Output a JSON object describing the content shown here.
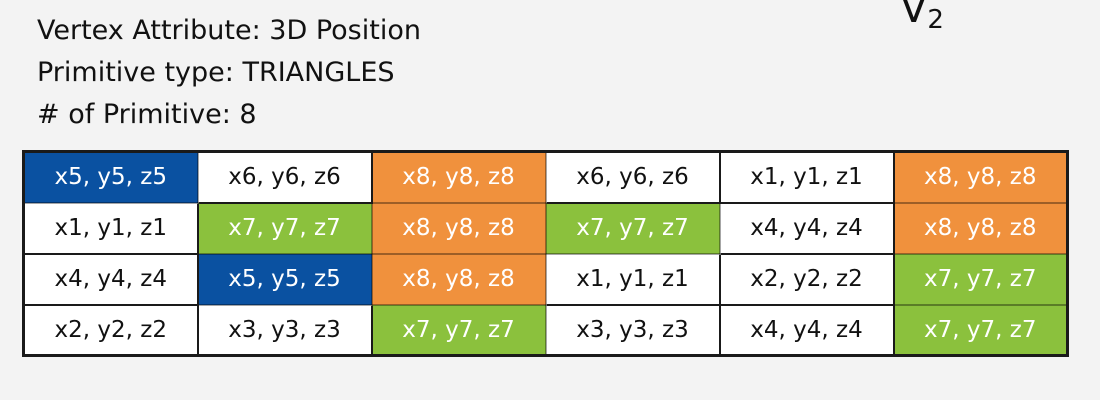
{
  "corner_label": {
    "main": "V",
    "sub": "2"
  },
  "header": {
    "lines": [
      "Vertex Attribute: 3D Position",
      "Primitive type: TRIANGLES",
      "# of Primitive: 8"
    ]
  },
  "table": {
    "rows": [
      [
        "x5, y5, z5",
        "x6, y6, z6",
        "x8, y8, z8",
        "x6, y6, z6",
        "x1, y1, z1",
        "x8, y8, z8"
      ],
      [
        "x1, y1, z1",
        "x7, y7, z7",
        "x8, y8, z8",
        "x7, y7, z7",
        "x4, y4, z4",
        "x8, y8, z8"
      ],
      [
        "x4, y4, z4",
        "x5, y5, z5",
        "x8, y8, z8",
        "x1, y1, z1",
        "x2, y2, z2",
        "x7, y7, z7"
      ],
      [
        "x2, y2, z2",
        "x3, y3, z3",
        "x7, y7, z7",
        "x3, y3, z3",
        "x4, y4, z4",
        "x7, y7, z7"
      ]
    ],
    "colors": [
      [
        "#0a51a1",
        "#ffffff",
        "#f0913d",
        "#ffffff",
        "#ffffff",
        "#f0913d"
      ],
      [
        "#ffffff",
        "#8bc13d",
        "#f0913d",
        "#8bc13d",
        "#ffffff",
        "#f0913d"
      ],
      [
        "#ffffff",
        "#0a51a1",
        "#f0913d",
        "#ffffff",
        "#ffffff",
        "#8bc13d"
      ],
      [
        "#ffffff",
        "#ffffff",
        "#8bc13d",
        "#ffffff",
        "#ffffff",
        "#8bc13d"
      ]
    ]
  }
}
